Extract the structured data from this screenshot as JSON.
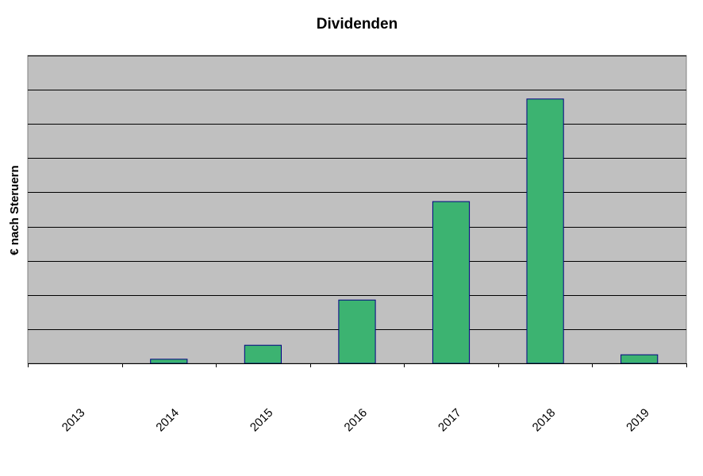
{
  "chart_data": {
    "type": "bar",
    "title": "Dividenden",
    "xlabel": "",
    "ylabel": "€ nach Steruern",
    "categories": [
      "2013",
      "2014",
      "2015",
      "2016",
      "2017",
      "2018",
      "2019"
    ],
    "values": [
      0,
      0.12,
      0.53,
      1.85,
      4.73,
      7.73,
      0.25
    ],
    "ylim": [
      0,
      9
    ],
    "y_ticks_labeled": false,
    "grid": true,
    "legend": "none",
    "colors": {
      "plot_background": "#c0c0c0",
      "bar_fill": "#3cb371",
      "bar_stroke": "#000080",
      "grid": "#000000",
      "axis": "#808080"
    }
  }
}
